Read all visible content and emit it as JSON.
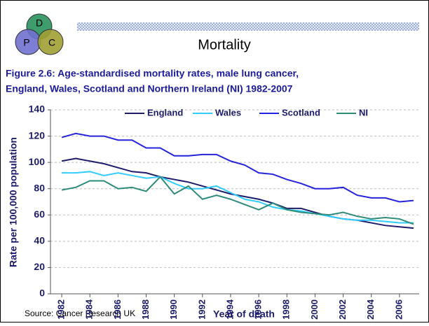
{
  "logo": [
    "D",
    "P",
    "C"
  ],
  "slide_title": "Mortality",
  "figure_title": [
    "Figure 2.6: Age-standardised mortality rates, male lung cancer,",
    "England, Wales, Scotland and Northern Ireland (NI) 1982-2007"
  ],
  "source": "Source: Cancer Research UK",
  "chart_data": {
    "type": "line",
    "x": [
      1982,
      1983,
      1984,
      1985,
      1986,
      1987,
      1988,
      1989,
      1990,
      1991,
      1992,
      1993,
      1994,
      1995,
      1996,
      1997,
      1998,
      1999,
      2000,
      2001,
      2002,
      2003,
      2004,
      2005,
      2006,
      2007
    ],
    "series": [
      {
        "name": "England",
        "color": "#1c1c6b",
        "values": [
          101,
          103,
          101,
          99,
          96,
          93,
          92,
          89,
          87,
          85,
          82,
          79,
          76,
          74,
          72,
          69,
          65,
          65,
          62,
          59,
          57,
          56,
          54,
          52,
          51,
          50
        ]
      },
      {
        "name": "Wales",
        "color": "#33ccff",
        "values": [
          92,
          92,
          93,
          90,
          92,
          90,
          88,
          89,
          84,
          80,
          80,
          82,
          77,
          72,
          70,
          66,
          64,
          63,
          61,
          59,
          57,
          56,
          56,
          55,
          54,
          54
        ]
      },
      {
        "name": "Scotland",
        "color": "#2424dd",
        "values": [
          119,
          122,
          120,
          120,
          117,
          117,
          111,
          111,
          105,
          105,
          106,
          106,
          101,
          98,
          92,
          91,
          87,
          84,
          80,
          80,
          81,
          75,
          73,
          73,
          70,
          71
        ]
      },
      {
        "name": "NI",
        "color": "#2e8b7a",
        "values": [
          79,
          81,
          86,
          86,
          80,
          81,
          78,
          89,
          76,
          82,
          72,
          75,
          72,
          68,
          64,
          69,
          64,
          62,
          61,
          60,
          62,
          59,
          57,
          58,
          57,
          53
        ]
      }
    ],
    "xlabel": "Year of death",
    "ylabel": "Rate per 100,000 population",
    "xlim": [
      1981.2,
      2007.4
    ],
    "ylim": [
      0,
      140
    ],
    "xticks": [
      1982,
      1984,
      1986,
      1988,
      1990,
      1992,
      1994,
      1996,
      1998,
      2000,
      2002,
      2004,
      2006
    ],
    "yticks": [
      0,
      20,
      40,
      60,
      80,
      100,
      120,
      140
    ],
    "grid": true,
    "legend": "top"
  }
}
